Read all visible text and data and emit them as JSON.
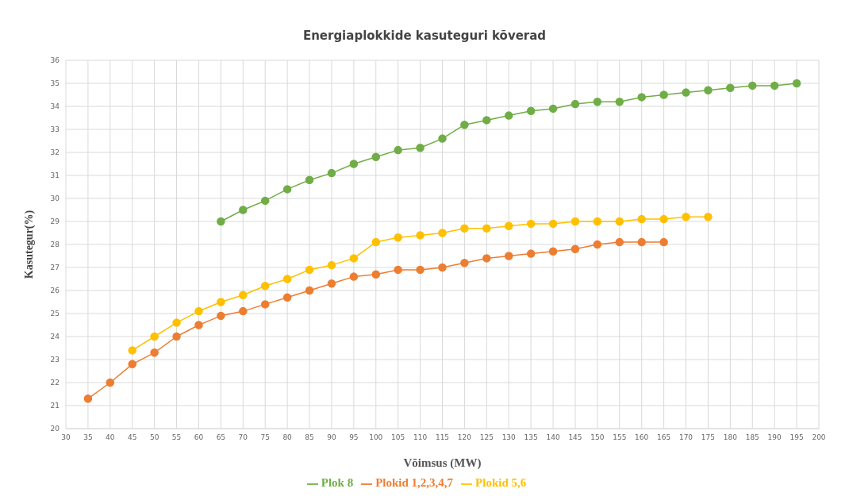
{
  "chart_data": {
    "type": "line",
    "title": "Energiaplokkide kasuteguri kõverad",
    "xlabel": "Võimsus (MW)",
    "ylabel": "Kasutegur(%)",
    "series": [
      {
        "name": "Plokid 1,2,3,4,7",
        "color": "#ed7d31",
        "x": [
          35,
          40,
          45,
          50,
          55,
          60,
          65,
          70,
          75,
          80,
          85,
          90,
          95,
          100,
          105,
          110,
          115,
          120,
          125,
          130,
          135,
          140,
          145,
          150,
          155,
          160,
          165
        ],
        "values": [
          21.3,
          22.0,
          22.8,
          23.3,
          24.0,
          24.5,
          24.9,
          25.1,
          25.4,
          25.7,
          26.0,
          26.3,
          26.6,
          26.7,
          26.9,
          26.9,
          27.0,
          27.2,
          27.4,
          27.5,
          27.6,
          27.7,
          27.8,
          28.0,
          28.1,
          28.1,
          28.1
        ]
      },
      {
        "name": "Plokid 5,6",
        "color": "#ffc000",
        "x": [
          45,
          50,
          55,
          60,
          65,
          70,
          75,
          80,
          85,
          90,
          95,
          100,
          105,
          110,
          115,
          120,
          125,
          130,
          135,
          140,
          145,
          150,
          155,
          160,
          165,
          170,
          175
        ],
        "values": [
          23.4,
          24.0,
          24.6,
          25.1,
          25.5,
          25.8,
          26.2,
          26.5,
          26.9,
          27.1,
          27.4,
          28.1,
          28.3,
          28.4,
          28.5,
          28.7,
          28.7,
          28.8,
          28.9,
          28.9,
          29.0,
          29.0,
          29.0,
          29.1,
          29.1,
          29.2,
          29.2
        ]
      },
      {
        "name": "Plok 8",
        "color": "#70ad47",
        "x": [
          65,
          70,
          75,
          80,
          85,
          90,
          95,
          100,
          105,
          110,
          115,
          120,
          125,
          130,
          135,
          140,
          145,
          150,
          155,
          160,
          165,
          170,
          175,
          180,
          185,
          190,
          195
        ],
        "values": [
          29.0,
          29.5,
          29.9,
          30.4,
          30.8,
          31.1,
          31.5,
          31.8,
          32.1,
          32.2,
          32.6,
          33.2,
          33.4,
          33.6,
          33.8,
          33.9,
          34.1,
          34.2,
          34.2,
          34.4,
          34.5,
          34.6,
          34.7,
          34.8,
          34.9,
          34.9,
          35.0
        ]
      }
    ],
    "xlim": [
      30,
      200
    ],
    "xticks": [
      30,
      35,
      40,
      45,
      50,
      55,
      60,
      65,
      70,
      75,
      80,
      85,
      90,
      95,
      100,
      105,
      110,
      115,
      120,
      125,
      130,
      135,
      140,
      145,
      150,
      155,
      160,
      165,
      170,
      175,
      180,
      185,
      190,
      195,
      200
    ],
    "ylim": [
      20,
      36
    ],
    "yticks": [
      20,
      21,
      22,
      23,
      24,
      25,
      26,
      27,
      28,
      29,
      30,
      31,
      32,
      33,
      34,
      35,
      36
    ],
    "grid": true,
    "legend": "bottom",
    "marker": "circle",
    "line_style": "solid"
  }
}
